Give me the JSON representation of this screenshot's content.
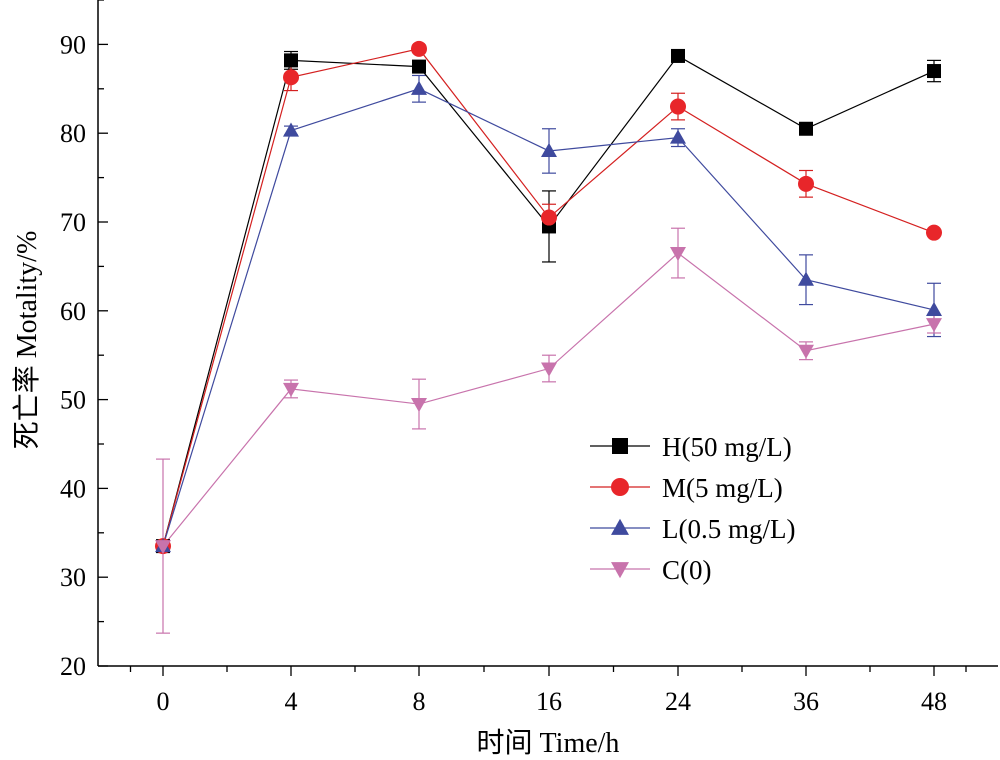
{
  "chart_data": {
    "type": "line",
    "title": "",
    "xlabel": "时间 Time/h",
    "ylabel": "死亡率 Motality/%",
    "categories": [
      "0",
      "4",
      "8",
      "16",
      "24",
      "36",
      "48"
    ],
    "ylim": [
      20,
      95
    ],
    "yticks": [
      20,
      30,
      40,
      50,
      60,
      70,
      80,
      90
    ],
    "grid": false,
    "legend_position": "lower-right",
    "series": [
      {
        "name": "H(50 mg/L)",
        "marker": "square",
        "color": "#000000",
        "line_color": "#000000",
        "values": [
          33.5,
          88.2,
          87.5,
          69.5,
          88.7,
          80.5,
          87.0
        ],
        "errors": [
          0,
          1.0,
          0.5,
          4.0,
          0.3,
          0.4,
          1.2
        ]
      },
      {
        "name": "M(5 mg/L)",
        "marker": "circle",
        "color": "#e8262a",
        "line_color": "#d42020",
        "values": [
          33.5,
          86.3,
          89.5,
          70.5,
          83.0,
          74.3,
          68.8
        ],
        "errors": [
          0,
          1.5,
          0.4,
          1.5,
          1.5,
          1.5,
          0.3
        ]
      },
      {
        "name": "L(0.5 mg/L)",
        "marker": "triangle-up",
        "color": "#3f4a9e",
        "line_color": "#3f4a9e",
        "values": [
          33.5,
          80.3,
          85.0,
          78.0,
          79.5,
          63.5,
          60.1
        ],
        "errors": [
          0,
          0.5,
          1.5,
          2.5,
          1.0,
          2.8,
          3.0
        ]
      },
      {
        "name": "C(0)",
        "marker": "triangle-down",
        "color": "#c873ac",
        "line_color": "#c873ac",
        "values": [
          33.5,
          51.2,
          49.5,
          53.5,
          66.5,
          55.5,
          58.5
        ],
        "errors": [
          9.8,
          1.0,
          2.8,
          1.5,
          2.8,
          1.0,
          1.0
        ]
      }
    ]
  }
}
